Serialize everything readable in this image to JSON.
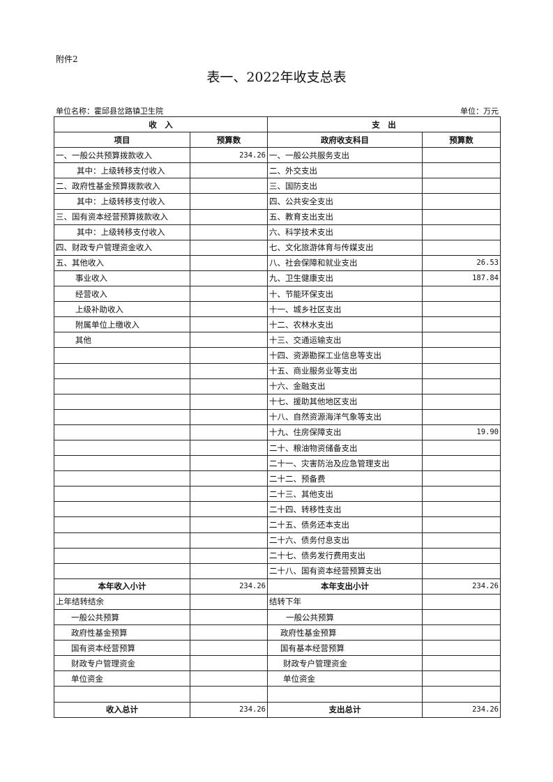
{
  "attachment": "附件2",
  "title": "表一、2022年收支总表",
  "unit_name": "单位名称：霍邱县岔路镇卫生院",
  "unit": "单位：万元",
  "headers": {
    "income": "收　入",
    "expense": "支　出",
    "income_item": "项目",
    "income_budget": "预算数",
    "expense_item": "政府收支科目",
    "expense_budget": "预算数"
  },
  "rows": [
    {
      "in": "一、一般公共预算拨款收入",
      "in_indent": 0,
      "in_val": "234.26",
      "out": "一、一般公共服务支出",
      "out_indent": 0,
      "out_val": ""
    },
    {
      "in": "其中：上级转移支付收入",
      "in_indent": 30,
      "in_val": "",
      "out": "二、外交支出",
      "out_indent": 0,
      "out_val": ""
    },
    {
      "in": "二、政府性基金预算拨款收入",
      "in_indent": 0,
      "in_val": "",
      "out": "三、国防支出",
      "out_indent": 0,
      "out_val": ""
    },
    {
      "in": "其中：上级转移支付收入",
      "in_indent": 30,
      "in_val": "",
      "out": "四、公共安全支出",
      "out_indent": 0,
      "out_val": ""
    },
    {
      "in": "三、国有资本经营预算拨款收入",
      "in_indent": 0,
      "in_val": "",
      "out": "五、教育支出支出",
      "out_indent": 0,
      "out_val": ""
    },
    {
      "in": "其中：上级转移支付收入",
      "in_indent": 30,
      "in_val": "",
      "out": "六、科学技术支出",
      "out_indent": 0,
      "out_val": ""
    },
    {
      "in": "四、财政专户管理资金收入",
      "in_indent": 0,
      "in_val": "",
      "out": "七、文化旅游体育与传媒支出",
      "out_indent": 0,
      "out_val": ""
    },
    {
      "in": "五、其他收入",
      "in_indent": 0,
      "in_val": "",
      "out": "八、社会保障和就业支出",
      "out_indent": 0,
      "out_val": "26.53"
    },
    {
      "in": "事业收入",
      "in_indent": 28,
      "in_val": "",
      "out": "九、卫生健康支出",
      "out_indent": 0,
      "out_val": "187.84"
    },
    {
      "in": "经营收入",
      "in_indent": 28,
      "in_val": "",
      "out": "十、节能环保支出",
      "out_indent": 0,
      "out_val": ""
    },
    {
      "in": "上级补助收入",
      "in_indent": 28,
      "in_val": "",
      "out": "十一、城乡社区支出",
      "out_indent": 0,
      "out_val": ""
    },
    {
      "in": "附属单位上缴收入",
      "in_indent": 28,
      "in_val": "",
      "out": "十二、农林水支出",
      "out_indent": 0,
      "out_val": ""
    },
    {
      "in": "其他",
      "in_indent": 28,
      "in_val": "",
      "out": "十三、交通运输支出",
      "out_indent": 0,
      "out_val": ""
    },
    {
      "in": "",
      "in_indent": 0,
      "in_val": "",
      "out": "十四、资源勘探工业信息等支出",
      "out_indent": 0,
      "out_val": ""
    },
    {
      "in": "",
      "in_indent": 0,
      "in_val": "",
      "out": "十五、商业服务业等支出",
      "out_indent": 0,
      "out_val": ""
    },
    {
      "in": "",
      "in_indent": 0,
      "in_val": "",
      "out": "十六、金融支出",
      "out_indent": 0,
      "out_val": ""
    },
    {
      "in": "",
      "in_indent": 0,
      "in_val": "",
      "out": "十七、援助其他地区支出",
      "out_indent": 0,
      "out_val": ""
    },
    {
      "in": "",
      "in_indent": 0,
      "in_val": "",
      "out": "十八、自然资源海洋气象等支出",
      "out_indent": 0,
      "out_val": ""
    },
    {
      "in": "",
      "in_indent": 0,
      "in_val": "",
      "out": "十九、住房保障支出",
      "out_indent": 0,
      "out_val": "19.90"
    },
    {
      "in": "",
      "in_indent": 0,
      "in_val": "",
      "out": "二十、粮油物资储备支出",
      "out_indent": 0,
      "out_val": ""
    },
    {
      "in": "",
      "in_indent": 0,
      "in_val": "",
      "out": "二十一、灾害防治及应急管理支出",
      "out_indent": 0,
      "out_val": ""
    },
    {
      "in": "",
      "in_indent": 0,
      "in_val": "",
      "out": "二十二、预备费",
      "out_indent": 0,
      "out_val": ""
    },
    {
      "in": "",
      "in_indent": 0,
      "in_val": "",
      "out": "二十三、其他支出",
      "out_indent": 0,
      "out_val": ""
    },
    {
      "in": "",
      "in_indent": 0,
      "in_val": "",
      "out": "二十四、转移性支出",
      "out_indent": 0,
      "out_val": ""
    },
    {
      "in": "",
      "in_indent": 0,
      "in_val": "",
      "out": "二十五、债务还本支出",
      "out_indent": 0,
      "out_val": ""
    },
    {
      "in": "",
      "in_indent": 0,
      "in_val": "",
      "out": "二十六、债务付息支出",
      "out_indent": 0,
      "out_val": ""
    },
    {
      "in": "",
      "in_indent": 0,
      "in_val": "",
      "out": "二十七、债务发行费用支出",
      "out_indent": 0,
      "out_val": ""
    },
    {
      "in": "",
      "in_indent": 0,
      "in_val": "",
      "out": "二十八、国有资本经营预算支出",
      "out_indent": 0,
      "out_val": ""
    },
    {
      "in": "本年收入小计",
      "in_val": "234.26",
      "out": "本年支出小计",
      "out_val": "234.26",
      "bold": true
    },
    {
      "in": "上年结转结余",
      "in_indent": 0,
      "in_val": "",
      "out": "结转下年",
      "out_indent": 0,
      "out_val": ""
    },
    {
      "in": "一般公共预算",
      "in_indent": 22,
      "in_val": "",
      "out": "一般公共预算",
      "out_indent": 24,
      "out_val": ""
    },
    {
      "in": "政府性基金预算",
      "in_indent": 22,
      "in_val": "",
      "out": "政府性基金预算",
      "out_indent": 16,
      "out_val": ""
    },
    {
      "in": "国有资本经营预算",
      "in_indent": 22,
      "in_val": "",
      "out": "国有基本经营预算",
      "out_indent": 16,
      "out_val": ""
    },
    {
      "in": "财政专户管理资金",
      "in_indent": 22,
      "in_val": "",
      "out": "财政专户管理资金",
      "out_indent": 20,
      "out_val": ""
    },
    {
      "in": "单位资金",
      "in_indent": 22,
      "in_val": "",
      "out": "单位资金",
      "out_indent": 20,
      "out_val": ""
    },
    {
      "in": "",
      "in_indent": 0,
      "in_val": "",
      "out": "",
      "out_indent": 0,
      "out_val": ""
    },
    {
      "in": "收入总计",
      "in_val": "234.26",
      "out": "支出总计",
      "out_val": "234.26",
      "bold": true
    }
  ]
}
